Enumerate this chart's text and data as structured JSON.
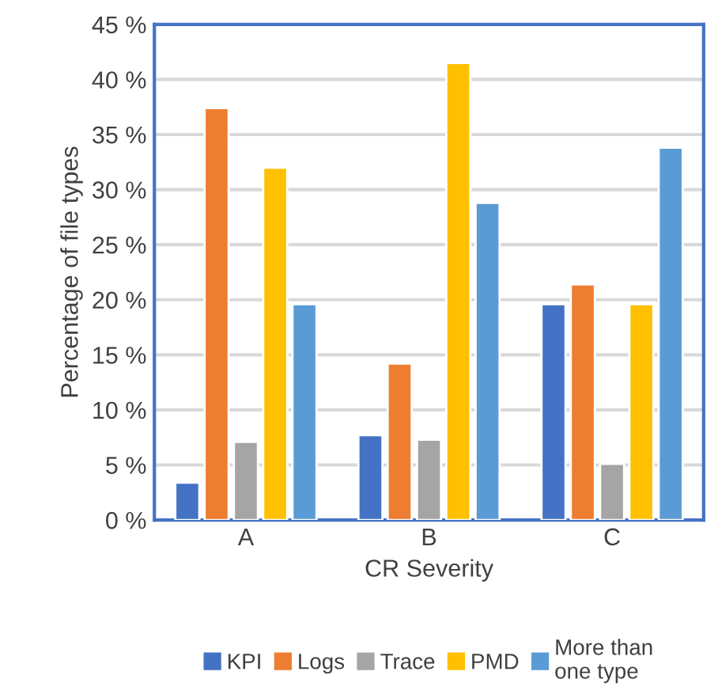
{
  "chart_data": {
    "type": "bar",
    "xlabel": "CR Severity",
    "ylabel": "Percentage of file types",
    "categories": [
      "A",
      "B",
      "C"
    ],
    "series": [
      {
        "name": "KPI",
        "color": "#4472c4",
        "values": [
          3.4,
          7.7,
          19.6
        ]
      },
      {
        "name": "Logs",
        "color": "#ed7d31",
        "values": [
          37.4,
          14.2,
          21.4
        ]
      },
      {
        "name": "Trace",
        "color": "#a5a5a5",
        "values": [
          7.1,
          7.3,
          5.1
        ]
      },
      {
        "name": "PMD",
        "color": "#ffc000",
        "values": [
          32.0,
          41.5,
          19.6
        ]
      },
      {
        "name": "More than\none type",
        "color": "#5b9bd5",
        "values": [
          19.6,
          28.8,
          33.8
        ]
      }
    ],
    "ylim": [
      0,
      45
    ],
    "yticks": [
      {
        "value": 0,
        "label": "0 %"
      },
      {
        "value": 5,
        "label": "5 %"
      },
      {
        "value": 10,
        "label": "10 %"
      },
      {
        "value": 15,
        "label": "15 %"
      },
      {
        "value": 20,
        "label": "20 %"
      },
      {
        "value": 25,
        "label": "25 %"
      },
      {
        "value": 30,
        "label": "30 %"
      },
      {
        "value": 35,
        "label": "35 %"
      },
      {
        "value": 40,
        "label": "40 %"
      },
      {
        "value": 45,
        "label": "45 %"
      }
    ],
    "grid": "y",
    "legend": "bottom"
  }
}
